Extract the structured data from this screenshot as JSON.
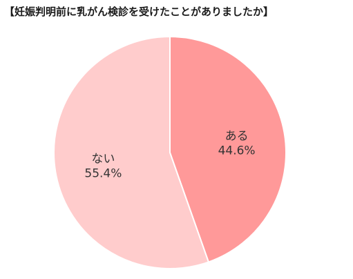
{
  "chart_data": {
    "type": "pie",
    "title": "【妊娠判明前に乳がん検診を受けたことがありましたか】",
    "slices": [
      {
        "label": "ある",
        "value": 44.6,
        "value_label": "44.6%",
        "color": "#ff9999"
      },
      {
        "label": "ない",
        "value": 55.4,
        "value_label": "55.4%",
        "color": "#ffcccc"
      }
    ],
    "start_angle_deg": 0,
    "direction": "clockwise",
    "slice_border_color": "#ffffff"
  }
}
